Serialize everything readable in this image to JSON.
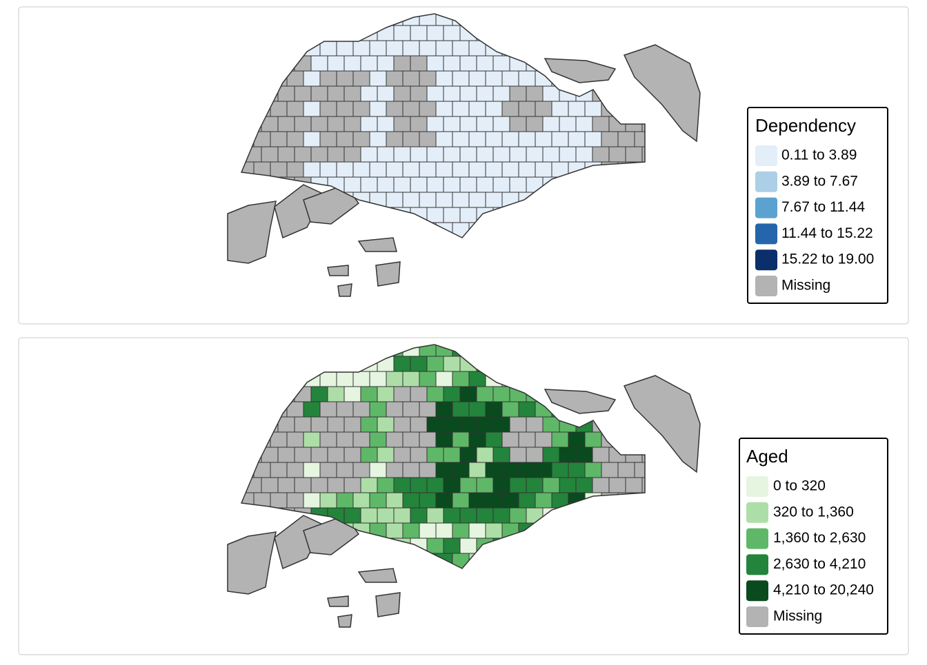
{
  "maps": [
    {
      "legend": {
        "title": "Dependency",
        "items": [
          {
            "label": "0.11 to 3.89",
            "color": "#e3eef9"
          },
          {
            "label": "3.89 to 7.67",
            "color": "#abcfe6"
          },
          {
            "label": "7.67 to 11.44",
            "color": "#5ba2d0"
          },
          {
            "label": "11.44 to 15.22",
            "color": "#2565ab"
          },
          {
            "label": "15.22 to 19.00",
            "color": "#0b2f6b"
          },
          {
            "label": "Missing",
            "color": "#b3b3b3"
          }
        ]
      }
    },
    {
      "legend": {
        "title": "Aged",
        "items": [
          {
            "label": "0 to 320",
            "color": "#e5f5e0"
          },
          {
            "label": "320 to 1,360",
            "color": "#aedea7"
          },
          {
            "label": "1,360 to 2,630",
            "color": "#5fb867"
          },
          {
            "label": "2,630 to 4,210",
            "color": "#23843b"
          },
          {
            "label": "4,210 to 20,240",
            "color": "#0a4a1f"
          },
          {
            "label": "Missing",
            "color": "#b3b3b3"
          }
        ]
      }
    }
  ]
}
